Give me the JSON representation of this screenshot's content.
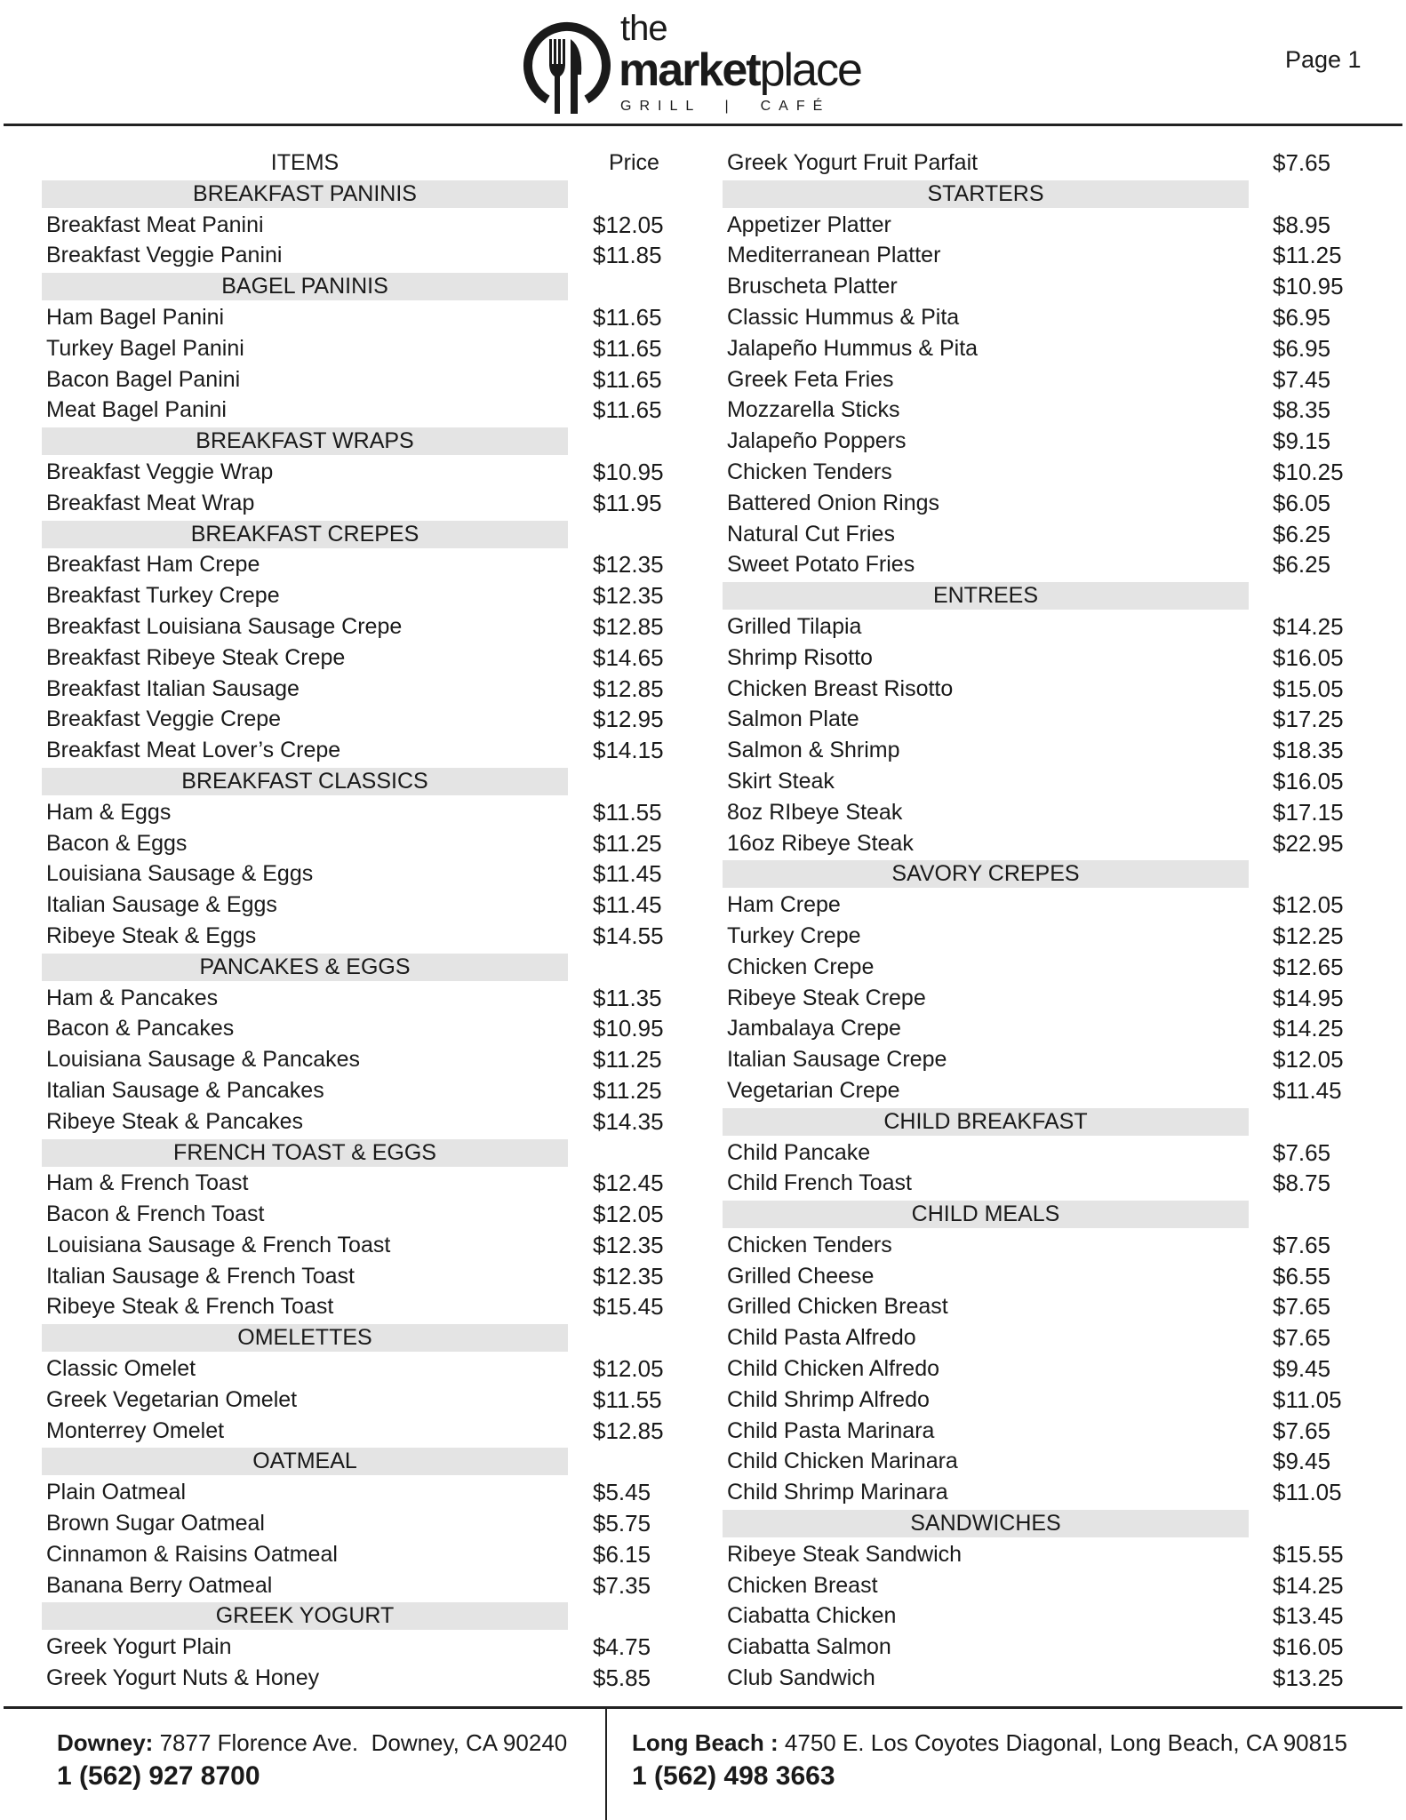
{
  "brand": {
    "the": "the",
    "market": "market",
    "place": "place",
    "tagline": "GRILL  |  CAFÉ"
  },
  "page_label": "Page 1",
  "left_column": [
    {
      "type": "colhead",
      "name": "ITEMS",
      "price": "Price"
    },
    {
      "type": "section",
      "name": "BREAKFAST PANINIS"
    },
    {
      "type": "item",
      "name": "Breakfast Meat Panini",
      "price": "$12.05"
    },
    {
      "type": "item",
      "name": "Breakfast Veggie Panini",
      "price": "$11.85"
    },
    {
      "type": "section",
      "name": "BAGEL PANINIS"
    },
    {
      "type": "item",
      "name": "Ham Bagel Panini",
      "price": "$11.65"
    },
    {
      "type": "item",
      "name": "Turkey Bagel Panini",
      "price": "$11.65"
    },
    {
      "type": "item",
      "name": "Bacon Bagel Panini",
      "price": "$11.65"
    },
    {
      "type": "item",
      "name": "Meat Bagel Panini",
      "price": "$11.65"
    },
    {
      "type": "section",
      "name": "BREAKFAST WRAPS"
    },
    {
      "type": "item",
      "name": "Breakfast Veggie Wrap",
      "price": "$10.95"
    },
    {
      "type": "item",
      "name": "Breakfast Meat Wrap",
      "price": "$11.95"
    },
    {
      "type": "section",
      "name": "BREAKFAST CREPES"
    },
    {
      "type": "item",
      "name": "Breakfast Ham Crepe",
      "price": "$12.35"
    },
    {
      "type": "item",
      "name": "Breakfast Turkey Crepe",
      "price": "$12.35"
    },
    {
      "type": "item",
      "name": "Breakfast Louisiana Sausage Crepe",
      "price": "$12.85"
    },
    {
      "type": "item",
      "name": "Breakfast Ribeye Steak Crepe",
      "price": "$14.65"
    },
    {
      "type": "item",
      "name": "Breakfast Italian Sausage",
      "price": "$12.85"
    },
    {
      "type": "item",
      "name": "Breakfast Veggie Crepe",
      "price": "$12.95"
    },
    {
      "type": "item",
      "name": "Breakfast Meat Lover’s Crepe",
      "price": "$14.15"
    },
    {
      "type": "section",
      "name": "BREAKFAST CLASSICS"
    },
    {
      "type": "item",
      "name": "Ham & Eggs",
      "price": "$11.55"
    },
    {
      "type": "item",
      "name": "Bacon & Eggs",
      "price": "$11.25"
    },
    {
      "type": "item",
      "name": "Louisiana Sausage & Eggs",
      "price": "$11.45"
    },
    {
      "type": "item",
      "name": "Italian Sausage & Eggs",
      "price": "$11.45"
    },
    {
      "type": "item",
      "name": "Ribeye Steak & Eggs",
      "price": "$14.55"
    },
    {
      "type": "section",
      "name": "PANCAKES & EGGS"
    },
    {
      "type": "item",
      "name": "Ham & Pancakes",
      "price": "$11.35"
    },
    {
      "type": "item",
      "name": "Bacon & Pancakes",
      "price": "$10.95"
    },
    {
      "type": "item",
      "name": "Louisiana Sausage & Pancakes",
      "price": "$11.25"
    },
    {
      "type": "item",
      "name": "Italian Sausage & Pancakes",
      "price": "$11.25"
    },
    {
      "type": "item",
      "name": "Ribeye Steak & Pancakes",
      "price": "$14.35"
    },
    {
      "type": "section",
      "name": "FRENCH TOAST & EGGS"
    },
    {
      "type": "item",
      "name": "Ham & French Toast",
      "price": "$12.45"
    },
    {
      "type": "item",
      "name": "Bacon & French Toast",
      "price": "$12.05"
    },
    {
      "type": "item",
      "name": "Louisiana Sausage & French Toast",
      "price": "$12.35"
    },
    {
      "type": "item",
      "name": "Italian Sausage & French Toast",
      "price": "$12.35"
    },
    {
      "type": "item",
      "name": "Ribeye Steak & French Toast",
      "price": "$15.45"
    },
    {
      "type": "section",
      "name": "OMELETTES"
    },
    {
      "type": "item",
      "name": "Classic Omelet",
      "price": "$12.05"
    },
    {
      "type": "item",
      "name": "Greek Vegetarian Omelet",
      "price": "$11.55"
    },
    {
      "type": "item",
      "name": "Monterrey Omelet",
      "price": "$12.85"
    },
    {
      "type": "section",
      "name": "OATMEAL"
    },
    {
      "type": "item",
      "name": "Plain Oatmeal",
      "price": "$5.45"
    },
    {
      "type": "item",
      "name": "Brown Sugar Oatmeal",
      "price": "$5.75"
    },
    {
      "type": "item",
      "name": "Cinnamon & Raisins Oatmeal",
      "price": "$6.15"
    },
    {
      "type": "item",
      "name": "Banana Berry Oatmeal",
      "price": "$7.35"
    },
    {
      "type": "section",
      "name": "GREEK YOGURT"
    },
    {
      "type": "item",
      "name": "Greek Yogurt Plain",
      "price": "$4.75"
    },
    {
      "type": "item",
      "name": "Greek Yogurt Nuts & Honey",
      "price": "$5.85"
    }
  ],
  "right_column": [
    {
      "type": "item",
      "name": "Greek Yogurt Fruit Parfait",
      "price": "$7.65"
    },
    {
      "type": "section",
      "name": "STARTERS"
    },
    {
      "type": "item",
      "name": "Appetizer Platter",
      "price": "$8.95"
    },
    {
      "type": "item",
      "name": "Mediterranean Platter",
      "price": "$11.25"
    },
    {
      "type": "item",
      "name": "Bruscheta Platter",
      "price": "$10.95"
    },
    {
      "type": "item",
      "name": "Classic Hummus & Pita",
      "price": "$6.95"
    },
    {
      "type": "item",
      "name": "Jalapeño Hummus & Pita",
      "price": "$6.95"
    },
    {
      "type": "item",
      "name": "Greek Feta Fries",
      "price": "$7.45"
    },
    {
      "type": "item",
      "name": "Mozzarella Sticks",
      "price": "$8.35"
    },
    {
      "type": "item",
      "name": "Jalapeño Poppers",
      "price": "$9.15"
    },
    {
      "type": "item",
      "name": "Chicken Tenders",
      "price": "$10.25"
    },
    {
      "type": "item",
      "name": "Battered Onion Rings",
      "price": "$6.05"
    },
    {
      "type": "item",
      "name": "Natural Cut Fries",
      "price": "$6.25"
    },
    {
      "type": "item",
      "name": "Sweet Potato Fries",
      "price": "$6.25"
    },
    {
      "type": "section",
      "name": "ENTREES"
    },
    {
      "type": "item",
      "name": "Grilled Tilapia",
      "price": "$14.25"
    },
    {
      "type": "item",
      "name": "Shrimp Risotto",
      "price": "$16.05"
    },
    {
      "type": "item",
      "name": "Chicken Breast Risotto",
      "price": "$15.05"
    },
    {
      "type": "item",
      "name": "Salmon Plate",
      "price": "$17.25"
    },
    {
      "type": "item",
      "name": "Salmon & Shrimp",
      "price": "$18.35"
    },
    {
      "type": "item",
      "name": "Skirt Steak",
      "price": "$16.05"
    },
    {
      "type": "item",
      "name": "8oz RIbeye Steak",
      "price": "$17.15"
    },
    {
      "type": "item",
      "name": "16oz Ribeye Steak",
      "price": "$22.95"
    },
    {
      "type": "section",
      "name": "SAVORY CREPES"
    },
    {
      "type": "item",
      "name": "Ham Crepe",
      "price": "$12.05"
    },
    {
      "type": "item",
      "name": "Turkey Crepe",
      "price": "$12.25"
    },
    {
      "type": "item",
      "name": "Chicken Crepe",
      "price": "$12.65"
    },
    {
      "type": "item",
      "name": "Ribeye Steak Crepe",
      "price": "$14.95"
    },
    {
      "type": "item",
      "name": "Jambalaya Crepe",
      "price": "$14.25"
    },
    {
      "type": "item",
      "name": "Italian Sausage Crepe",
      "price": "$12.05"
    },
    {
      "type": "item",
      "name": "Vegetarian Crepe",
      "price": "$11.45"
    },
    {
      "type": "section",
      "name": "CHILD BREAKFAST"
    },
    {
      "type": "item",
      "name": "Child Pancake",
      "price": "$7.65"
    },
    {
      "type": "item",
      "name": "Child French Toast",
      "price": "$8.75"
    },
    {
      "type": "section",
      "name": "CHILD MEALS"
    },
    {
      "type": "item",
      "name": "Chicken Tenders",
      "price": "$7.65"
    },
    {
      "type": "item",
      "name": "Grilled Cheese",
      "price": "$6.55"
    },
    {
      "type": "item",
      "name": "Grilled Chicken Breast",
      "price": "$7.65"
    },
    {
      "type": "item",
      "name": "Child Pasta Alfredo",
      "price": "$7.65"
    },
    {
      "type": "item",
      "name": "Child Chicken Alfredo",
      "price": "$9.45"
    },
    {
      "type": "item",
      "name": "Child Shrimp Alfredo",
      "price": "$11.05"
    },
    {
      "type": "item",
      "name": "Child Pasta Marinara",
      "price": "$7.65"
    },
    {
      "type": "item",
      "name": "Child Chicken Marinara",
      "price": "$9.45"
    },
    {
      "type": "item",
      "name": "Child Shrimp Marinara",
      "price": "$11.05"
    },
    {
      "type": "section",
      "name": "SANDWICHES"
    },
    {
      "type": "item",
      "name": "Ribeye Steak Sandwich",
      "price": "$15.55"
    },
    {
      "type": "item",
      "name": "Chicken Breast",
      "price": "$14.25"
    },
    {
      "type": "item",
      "name": "Ciabatta Chicken",
      "price": "$13.45"
    },
    {
      "type": "item",
      "name": "Ciabatta Salmon",
      "price": "$16.05"
    },
    {
      "type": "item",
      "name": "Club Sandwich",
      "price": "$13.25"
    }
  ],
  "footer": {
    "downey": {
      "label": "Downey:",
      "address": " 7877 Florence Ave.  Downey, CA 90240",
      "phone": "1 (562) 927 8700"
    },
    "long_beach": {
      "label": "Long Beach :",
      "address": " 4750 E. Los Coyotes Diagonal, Long Beach, CA 90815",
      "phone": "1 (562) 498 3663"
    }
  },
  "colors": {
    "section_band": "#e4e4e4",
    "text": "#1a1a1a"
  },
  "icons": {
    "logo": "fork-knife-circle-icon"
  }
}
